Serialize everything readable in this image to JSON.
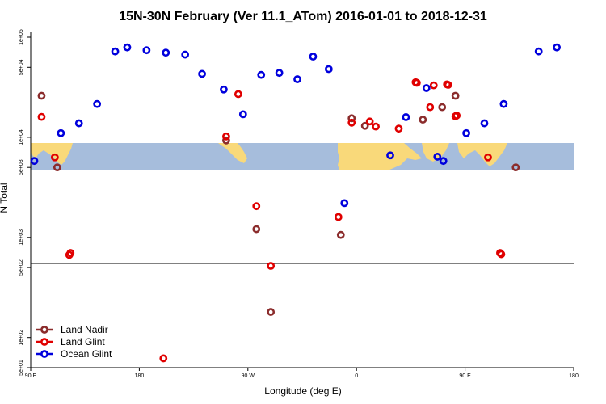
{
  "chart_data": {
    "type": "scatter",
    "title": "15N-30N February (Ver 11.1_ATom)   2016-01-01 to 2018-12-31",
    "xlabel": "Longitude (deg E)",
    "ylabel": "N Total",
    "x_ticks": [
      {
        "value": 90,
        "label": "90 E"
      },
      {
        "value": 180,
        "label": "180"
      },
      {
        "value": 270,
        "label": "90 W"
      },
      {
        "value": 360,
        "label": "0"
      },
      {
        "value": 450,
        "label": "90 E"
      },
      {
        "value": 540,
        "label": "180"
      }
    ],
    "y_ticks": [
      {
        "value": 50,
        "label": "5e+01"
      },
      {
        "value": 100,
        "label": "1e+02"
      },
      {
        "value": 500,
        "label": "5e+02"
      },
      {
        "value": 1000,
        "label": "1e+03"
      },
      {
        "value": 5000,
        "label": "5e+03"
      },
      {
        "value": 10000,
        "label": "1e+04"
      },
      {
        "value": 50000,
        "label": "5e+04"
      },
      {
        "value": 100000,
        "label": "1e+05"
      }
    ],
    "xlim": [
      90,
      540
    ],
    "ylim_log": [
      50,
      100000
    ],
    "y_scale": "log",
    "legend_position": "bottom-left",
    "series": [
      {
        "name": "Land Nadir",
        "color": "#8b2c2c",
        "points": [
          [
            99,
            26000
          ],
          [
            112,
            5000
          ],
          [
            252,
            9300
          ],
          [
            277,
            1210
          ],
          [
            289,
            180
          ],
          [
            347,
            1060
          ],
          [
            356,
            15500
          ],
          [
            367,
            13000
          ],
          [
            415,
            15000
          ],
          [
            431,
            20000
          ],
          [
            442,
            26000
          ],
          [
            492,
            5000
          ]
        ]
      },
      {
        "name": "Land Glint",
        "color": "#e00000",
        "points": [
          [
            99,
            16000
          ],
          [
            110,
            6300
          ],
          [
            122,
            670
          ],
          [
            123,
            700
          ],
          [
            200,
            62
          ],
          [
            252,
            10200
          ],
          [
            262,
            27000
          ],
          [
            277,
            2050
          ],
          [
            289,
            520
          ],
          [
            345,
            1600
          ],
          [
            356,
            14000
          ],
          [
            371,
            14400
          ],
          [
            376,
            12800
          ],
          [
            395,
            12200
          ],
          [
            409,
            35500
          ],
          [
            410,
            35000
          ],
          [
            421,
            20000
          ],
          [
            424,
            33000
          ],
          [
            435,
            33800
          ],
          [
            436,
            33400
          ],
          [
            442,
            16200
          ],
          [
            443,
            16500
          ],
          [
            469,
            6300
          ],
          [
            479,
            700
          ],
          [
            480,
            680
          ]
        ]
      },
      {
        "name": "Ocean Glint",
        "color": "#0000dd",
        "points": [
          [
            93,
            5800
          ],
          [
            115,
            11000
          ],
          [
            130,
            13800
          ],
          [
            145,
            21500
          ],
          [
            160,
            72000
          ],
          [
            170,
            79000
          ],
          [
            186,
            74000
          ],
          [
            202,
            70000
          ],
          [
            218,
            67000
          ],
          [
            232,
            43000
          ],
          [
            250,
            30000
          ],
          [
            266,
            17000
          ],
          [
            281,
            42000
          ],
          [
            296,
            44000
          ],
          [
            311,
            38000
          ],
          [
            324,
            64000
          ],
          [
            337,
            48000
          ],
          [
            350,
            2200
          ],
          [
            388,
            6600
          ],
          [
            401,
            15900
          ],
          [
            418,
            31000
          ],
          [
            427,
            6400
          ],
          [
            432,
            5800
          ],
          [
            451,
            11000
          ],
          [
            466,
            13800
          ],
          [
            482,
            21500
          ],
          [
            511,
            72000
          ],
          [
            526,
            79000
          ]
        ]
      }
    ]
  }
}
